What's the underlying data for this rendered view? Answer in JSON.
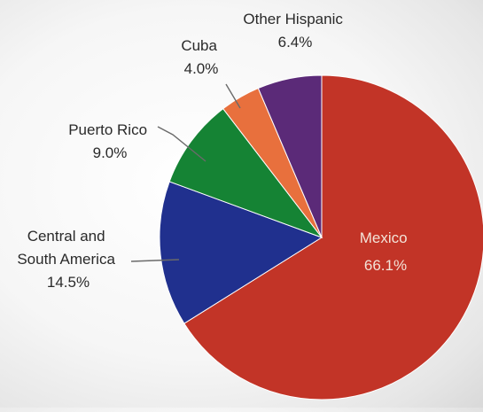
{
  "chart_data": {
    "type": "pie",
    "title": "",
    "slices": [
      {
        "label_lines": [
          "Mexico"
        ],
        "value_text": "66.1%",
        "value": 66.1,
        "color": "#c23427"
      },
      {
        "label_lines": [
          "Central and",
          "South America"
        ],
        "value_text": "14.5%",
        "value": 14.5,
        "color": "#20308e"
      },
      {
        "label_lines": [
          "Puerto Rico"
        ],
        "value_text": "9.0%",
        "value": 9.0,
        "color": "#158334"
      },
      {
        "label_lines": [
          "Cuba"
        ],
        "value_text": "4.0%",
        "value": 4.0,
        "color": "#e8703d"
      },
      {
        "label_lines": [
          "Other Hispanic"
        ],
        "value_text": "6.4%",
        "value": 6.4,
        "color": "#5b2a78"
      }
    ]
  }
}
